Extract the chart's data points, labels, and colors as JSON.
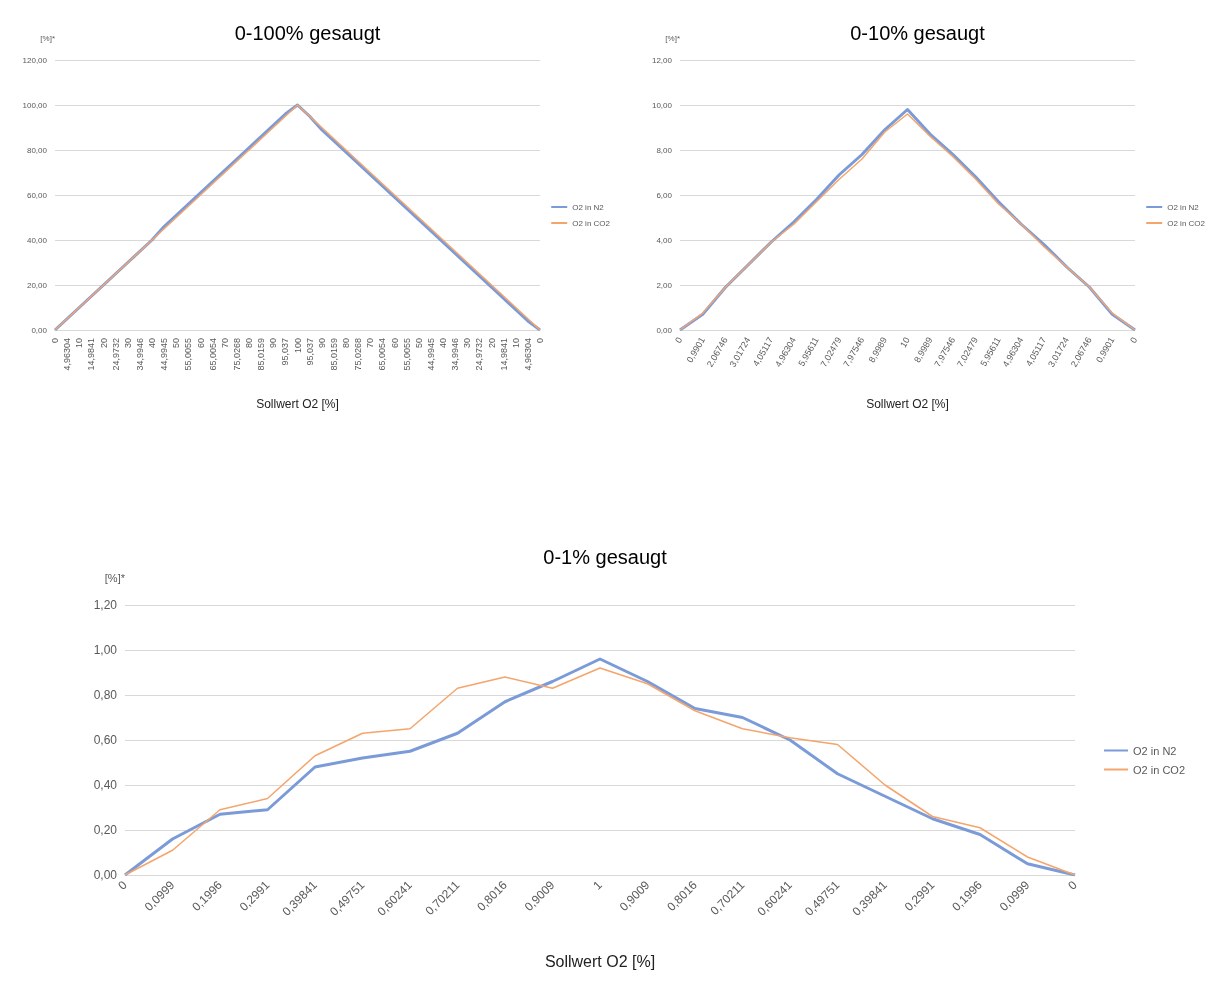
{
  "chart_data": [
    {
      "type": "line",
      "title": "0-100% gesaugt",
      "ylabel": "[%]*",
      "xlabel": "Sollwert O2 [%]",
      "legend": "right",
      "grid": "y",
      "marker": "none",
      "categories": [
        "0",
        "4,96304",
        "10",
        "14,9841",
        "20",
        "24,9732",
        "30",
        "34,9946",
        "40",
        "44,9945",
        "50",
        "55,0055",
        "60",
        "65,0054",
        "70",
        "75,0268",
        "80",
        "85,0159",
        "90",
        "95,037",
        "100",
        "95,037",
        "90",
        "85,0159",
        "80",
        "75,0268",
        "70",
        "65,0054",
        "60",
        "55,0055",
        "50",
        "44,9945",
        "40",
        "34,9946",
        "30",
        "24,9732",
        "20",
        "14,9841",
        "10",
        "4,96304",
        "0"
      ],
      "ylim": [
        0,
        120
      ],
      "yticks": [
        {
          "value": 0,
          "label": "0,00"
        },
        {
          "value": 20,
          "label": "20,00"
        },
        {
          "value": 40,
          "label": "40,00"
        },
        {
          "value": 60,
          "label": "60,00"
        },
        {
          "value": 80,
          "label": "80,00"
        },
        {
          "value": 100,
          "label": "100,00"
        },
        {
          "value": 120,
          "label": "120,00"
        }
      ],
      "series": [
        {
          "name": "O2 in N2",
          "color": "#7b9bd8",
          "values": [
            0,
            5,
            10,
            15,
            20,
            25,
            30,
            35,
            40,
            46,
            51,
            56,
            61,
            66,
            71,
            76,
            81,
            86,
            91,
            96,
            100,
            95,
            89,
            84,
            79,
            74,
            69,
            64,
            59,
            54,
            49,
            44,
            39,
            34,
            29,
            24,
            19,
            14,
            9,
            4,
            0
          ]
        },
        {
          "name": "O2 in CO2",
          "color": "#f4a56c",
          "values": [
            0,
            5,
            10,
            15,
            20,
            25,
            30,
            35,
            40,
            45,
            50,
            55,
            60,
            65,
            70,
            75,
            80,
            85,
            90,
            95,
            100,
            95,
            90,
            85,
            80,
            75,
            70,
            65,
            60,
            55,
            50,
            45,
            40,
            35,
            30,
            25,
            20,
            15,
            10,
            5,
            0
          ]
        }
      ]
    },
    {
      "type": "line",
      "title": "0-10% gesaugt",
      "ylabel": "[%]*",
      "xlabel": "Sollwert O2 [%]",
      "legend": "right",
      "grid": "y",
      "marker": "none",
      "categories": [
        "0",
        "0,9901",
        "2,06746",
        "3,01724",
        "4,05117",
        "4,96304",
        "5,95611",
        "7,02479",
        "7,97546",
        "8,9989",
        "10",
        "8,9989",
        "7,97546",
        "7,02479",
        "5,95611",
        "4,96304",
        "4,05117",
        "3,01724",
        "2,06746",
        "0,9901",
        "0"
      ],
      "ylim": [
        0,
        12
      ],
      "yticks": [
        {
          "value": 0,
          "label": "0,00"
        },
        {
          "value": 2,
          "label": "2,00"
        },
        {
          "value": 4,
          "label": "4,00"
        },
        {
          "value": 6,
          "label": "6,00"
        },
        {
          "value": 8,
          "label": "8,00"
        },
        {
          "value": 10,
          "label": "10,00"
        },
        {
          "value": 12,
          "label": "12,00"
        }
      ],
      "series": [
        {
          "name": "O2 in N2",
          "color": "#7b9bd8",
          "values": [
            0,
            0.7,
            1.9,
            2.9,
            3.9,
            4.8,
            5.8,
            6.9,
            7.8,
            8.9,
            9.8,
            8.7,
            7.8,
            6.8,
            5.7,
            4.7,
            3.8,
            2.8,
            1.9,
            0.7,
            0
          ]
        },
        {
          "name": "O2 in CO2",
          "color": "#f4a56c",
          "values": [
            0,
            0.75,
            1.9,
            2.9,
            3.9,
            4.7,
            5.7,
            6.7,
            7.6,
            8.8,
            9.6,
            8.6,
            7.7,
            6.7,
            5.6,
            4.7,
            3.7,
            2.8,
            1.9,
            0.75,
            0
          ]
        }
      ]
    },
    {
      "type": "line",
      "title": "0-1% gesaugt",
      "ylabel": "[%]*",
      "xlabel": "Sollwert O2 [%]",
      "legend": "right",
      "grid": "y",
      "marker": "none",
      "categories": [
        "0",
        "0,0999",
        "0,1996",
        "0,2991",
        "0,39841",
        "0,49751",
        "0,60241",
        "0,70211",
        "0,8016",
        "0,9009",
        "1",
        "0,9009",
        "0,8016",
        "0,70211",
        "0,60241",
        "0,49751",
        "0,39841",
        "0,2991",
        "0,1996",
        "0,0999",
        "0"
      ],
      "ylim": [
        0,
        1.2
      ],
      "yticks": [
        {
          "value": 0,
          "label": "0,00"
        },
        {
          "value": 0.2,
          "label": "0,20"
        },
        {
          "value": 0.4,
          "label": "0,40"
        },
        {
          "value": 0.6,
          "label": "0,60"
        },
        {
          "value": 0.8,
          "label": "0,80"
        },
        {
          "value": 1,
          "label": "1,00"
        },
        {
          "value": 1.2,
          "label": "1,20"
        }
      ],
      "series": [
        {
          "name": "O2 in N2",
          "color": "#7b9bd8",
          "values": [
            0,
            0.16,
            0.27,
            0.29,
            0.48,
            0.52,
            0.55,
            0.63,
            0.77,
            0.86,
            0.96,
            0.86,
            0.74,
            0.7,
            0.6,
            0.45,
            0.35,
            0.25,
            0.18,
            0.05,
            0
          ]
        },
        {
          "name": "O2 in CO2",
          "color": "#f4a56c",
          "values": [
            0,
            0.11,
            0.29,
            0.34,
            0.53,
            0.63,
            0.65,
            0.83,
            0.88,
            0.83,
            0.92,
            0.85,
            0.73,
            0.65,
            0.61,
            0.58,
            0.4,
            0.26,
            0.21,
            0.08,
            0
          ]
        }
      ]
    }
  ]
}
